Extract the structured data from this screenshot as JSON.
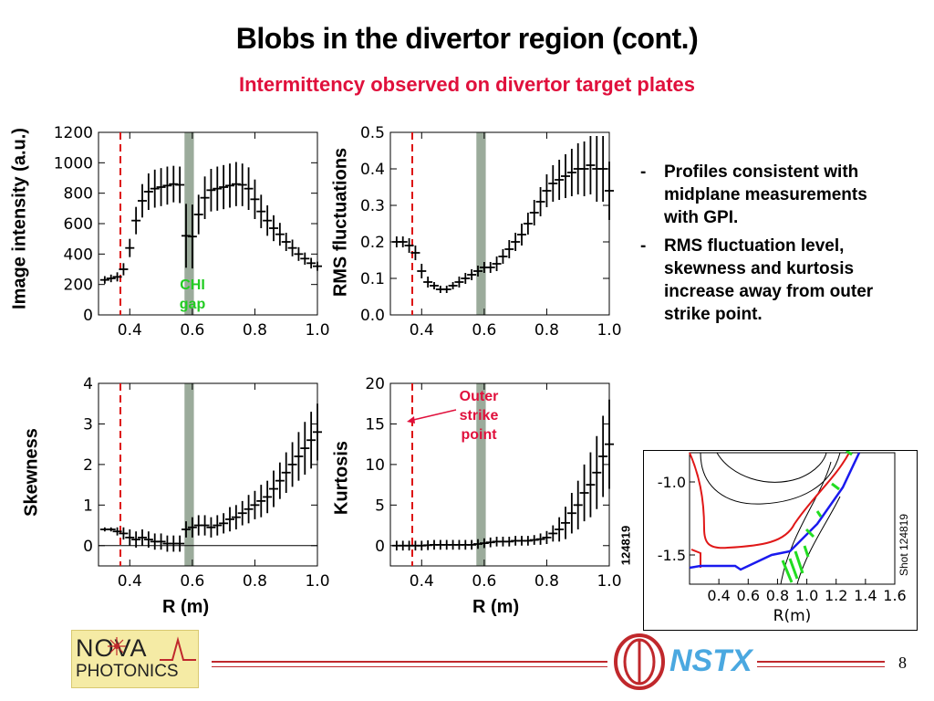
{
  "slide": {
    "title": "Blobs in the divertor region (cont.)",
    "subtitle": "Intermittency observed on divertor target plates",
    "page_number": "8"
  },
  "bullets": [
    {
      "dash": "-",
      "text": "Profiles consistent with midplane measurements with GPI."
    },
    {
      "dash": "-",
      "text": "RMS fluctuation level, skewness and kurtosis increase away from outer strike point."
    }
  ],
  "annotations": {
    "chi_gap": "CHI gap",
    "outer_strike_point": "Outer strike point"
  },
  "shot_labels": {
    "rotated_left": "124819",
    "inset_right": "Shot 124819"
  },
  "logos": {
    "nova_top": "NOVA",
    "nova_bottom": "PHOTONICS",
    "nstx": "NSTX"
  },
  "colors": {
    "title_red": "#e0103c",
    "chi_green": "#22cc22",
    "strike_red": "#dd1111",
    "gap_band": "#8a9c8a",
    "footer_red": "#c0282c"
  },
  "chart_data": [
    {
      "id": "intensity",
      "type": "scatter",
      "ylabel": "Image intensity (a.u.)",
      "xlabel": "",
      "xlim": [
        0.3,
        1.0
      ],
      "ylim": [
        0,
        1200
      ],
      "xticks": [
        "0.4",
        "0.6",
        "0.8",
        "1.0"
      ],
      "xtick_values": [
        0.4,
        0.6,
        0.8,
        1.0
      ],
      "yticks": [
        "0",
        "200",
        "400",
        "600",
        "800",
        "1000",
        "1200"
      ],
      "ytick_values": [
        0,
        200,
        400,
        600,
        800,
        1000,
        1200
      ],
      "strike_x": 0.37,
      "gap": [
        0.575,
        0.605
      ],
      "x": [
        0.32,
        0.34,
        0.36,
        0.38,
        0.4,
        0.42,
        0.44,
        0.46,
        0.48,
        0.5,
        0.52,
        0.54,
        0.56,
        0.58,
        0.6,
        0.62,
        0.64,
        0.66,
        0.68,
        0.7,
        0.72,
        0.74,
        0.76,
        0.78,
        0.8,
        0.82,
        0.84,
        0.86,
        0.88,
        0.9,
        0.92,
        0.94,
        0.96,
        0.98,
        1.0
      ],
      "y": [
        230,
        240,
        250,
        300,
        440,
        620,
        750,
        810,
        830,
        840,
        850,
        860,
        855,
        520,
        515,
        660,
        770,
        820,
        830,
        840,
        850,
        860,
        855,
        830,
        760,
        680,
        620,
        570,
        530,
        480,
        440,
        400,
        370,
        340,
        320
      ],
      "err": [
        25,
        25,
        30,
        40,
        60,
        90,
        110,
        120,
        125,
        125,
        125,
        120,
        120,
        210,
        210,
        130,
        140,
        140,
        145,
        145,
        145,
        145,
        140,
        140,
        130,
        110,
        100,
        85,
        75,
        60,
        55,
        45,
        40,
        35,
        30
      ]
    },
    {
      "id": "rms",
      "type": "scatter",
      "ylabel": "RMS fluctuations",
      "xlabel": "",
      "xlim": [
        0.3,
        1.0
      ],
      "ylim": [
        0,
        0.5
      ],
      "xticks": [
        "0.4",
        "0.6",
        "0.8",
        "1.0"
      ],
      "xtick_values": [
        0.4,
        0.6,
        0.8,
        1.0
      ],
      "yticks": [
        "0.0",
        "0.1",
        "0.2",
        "0.3",
        "0.4",
        "0.5"
      ],
      "ytick_values": [
        0,
        0.1,
        0.2,
        0.3,
        0.4,
        0.5
      ],
      "strike_x": 0.37,
      "gap": [
        0.575,
        0.605
      ],
      "x": [
        0.32,
        0.34,
        0.36,
        0.38,
        0.4,
        0.42,
        0.44,
        0.46,
        0.48,
        0.5,
        0.52,
        0.54,
        0.56,
        0.58,
        0.6,
        0.62,
        0.64,
        0.66,
        0.68,
        0.7,
        0.72,
        0.74,
        0.76,
        0.78,
        0.8,
        0.82,
        0.84,
        0.86,
        0.88,
        0.9,
        0.92,
        0.94,
        0.96,
        0.98,
        1.0
      ],
      "y": [
        0.2,
        0.2,
        0.19,
        0.17,
        0.12,
        0.09,
        0.08,
        0.07,
        0.07,
        0.08,
        0.09,
        0.1,
        0.11,
        0.12,
        0.13,
        0.13,
        0.14,
        0.16,
        0.18,
        0.2,
        0.22,
        0.25,
        0.28,
        0.31,
        0.34,
        0.36,
        0.37,
        0.38,
        0.39,
        0.4,
        0.4,
        0.41,
        0.4,
        0.4,
        0.34
      ],
      "err": [
        0.015,
        0.015,
        0.02,
        0.02,
        0.02,
        0.015,
        0.01,
        0.01,
        0.01,
        0.01,
        0.015,
        0.015,
        0.015,
        0.015,
        0.015,
        0.015,
        0.02,
        0.02,
        0.025,
        0.025,
        0.03,
        0.03,
        0.035,
        0.04,
        0.045,
        0.05,
        0.055,
        0.06,
        0.065,
        0.07,
        0.075,
        0.08,
        0.09,
        0.09,
        0.08
      ]
    },
    {
      "id": "skewness",
      "type": "scatter",
      "ylabel": "Skewness",
      "xlabel": "R (m)",
      "xlim": [
        0.3,
        1.0
      ],
      "ylim": [
        -0.5,
        4
      ],
      "xticks": [
        "0.4",
        "0.6",
        "0.8",
        "1.0"
      ],
      "xtick_values": [
        0.4,
        0.6,
        0.8,
        1.0
      ],
      "yticks": [
        "0",
        "1",
        "2",
        "3",
        "4"
      ],
      "ytick_values": [
        0,
        1,
        2,
        3,
        4
      ],
      "zero_line": 0,
      "strike_x": 0.37,
      "gap": [
        0.575,
        0.605
      ],
      "x": [
        0.32,
        0.34,
        0.36,
        0.38,
        0.4,
        0.42,
        0.44,
        0.46,
        0.48,
        0.5,
        0.52,
        0.54,
        0.56,
        0.58,
        0.6,
        0.62,
        0.64,
        0.66,
        0.68,
        0.7,
        0.72,
        0.74,
        0.76,
        0.78,
        0.8,
        0.82,
        0.84,
        0.86,
        0.88,
        0.9,
        0.92,
        0.94,
        0.96,
        0.98,
        1.0
      ],
      "y": [
        0.4,
        0.4,
        0.35,
        0.3,
        0.2,
        0.15,
        0.2,
        0.15,
        0.1,
        0.1,
        0.05,
        0.05,
        0.05,
        0.4,
        0.45,
        0.5,
        0.5,
        0.45,
        0.5,
        0.55,
        0.65,
        0.7,
        0.8,
        0.9,
        1.0,
        1.1,
        1.2,
        1.4,
        1.6,
        1.8,
        2.0,
        2.2,
        2.4,
        2.6,
        2.8
      ],
      "err": [
        0.05,
        0.05,
        0.1,
        0.15,
        0.2,
        0.2,
        0.2,
        0.2,
        0.2,
        0.2,
        0.2,
        0.2,
        0.2,
        0.2,
        0.25,
        0.25,
        0.25,
        0.25,
        0.25,
        0.25,
        0.3,
        0.3,
        0.3,
        0.35,
        0.35,
        0.4,
        0.4,
        0.45,
        0.45,
        0.5,
        0.55,
        0.6,
        0.65,
        0.7,
        0.7
      ]
    },
    {
      "id": "kurtosis",
      "type": "scatter",
      "ylabel": "Kurtosis",
      "xlabel": "R (m)",
      "xlim": [
        0.3,
        1.0
      ],
      "ylim": [
        -2.5,
        20
      ],
      "xticks": [
        "0.4",
        "0.6",
        "0.8",
        "1.0"
      ],
      "xtick_values": [
        0.4,
        0.6,
        0.8,
        1.0
      ],
      "yticks": [
        "0",
        "5",
        "10",
        "15",
        "20"
      ],
      "ytick_values": [
        0,
        5,
        10,
        15,
        20
      ],
      "strike_x": 0.37,
      "gap": [
        0.575,
        0.605
      ],
      "x": [
        0.32,
        0.34,
        0.36,
        0.38,
        0.4,
        0.42,
        0.44,
        0.46,
        0.48,
        0.5,
        0.52,
        0.54,
        0.56,
        0.58,
        0.6,
        0.62,
        0.64,
        0.66,
        0.68,
        0.7,
        0.72,
        0.74,
        0.76,
        0.78,
        0.8,
        0.82,
        0.84,
        0.86,
        0.88,
        0.9,
        0.92,
        0.94,
        0.96,
        0.98,
        1.0
      ],
      "y": [
        0,
        0,
        0,
        0,
        0,
        0.05,
        0.1,
        0.1,
        0.1,
        0.1,
        0.1,
        0.1,
        0.1,
        0.2,
        0.3,
        0.4,
        0.5,
        0.5,
        0.5,
        0.6,
        0.6,
        0.6,
        0.7,
        0.8,
        1.0,
        1.5,
        2.0,
        2.8,
        4.0,
        5.0,
        6.5,
        7.5,
        9.0,
        11.0,
        12.5
      ],
      "err": [
        0.6,
        0.6,
        0.6,
        0.6,
        0.6,
        0.6,
        0.6,
        0.6,
        0.6,
        0.6,
        0.6,
        0.6,
        0.6,
        0.6,
        0.6,
        0.6,
        0.6,
        0.6,
        0.6,
        0.6,
        0.6,
        0.6,
        0.6,
        0.7,
        0.8,
        1.0,
        1.5,
        2.0,
        2.5,
        3.0,
        3.5,
        4.0,
        4.5,
        5.0,
        5.5
      ]
    },
    {
      "id": "equilibrium_inset",
      "type": "line",
      "xlabel": "R(m)",
      "ylabel": "",
      "xlim": [
        0.2,
        1.6
      ],
      "ylim": [
        -1.7,
        -0.8
      ],
      "xticks": [
        "0.4",
        "0.6",
        "0.8",
        "1.0",
        "1.2",
        "1.4",
        "1.6"
      ],
      "xtick_values": [
        0.4,
        0.6,
        0.8,
        1.0,
        1.2,
        1.4,
        1.6
      ],
      "yticks": [
        "-1.0",
        "-1.5"
      ],
      "ytick_values": [
        -1.0,
        -1.5
      ]
    }
  ]
}
